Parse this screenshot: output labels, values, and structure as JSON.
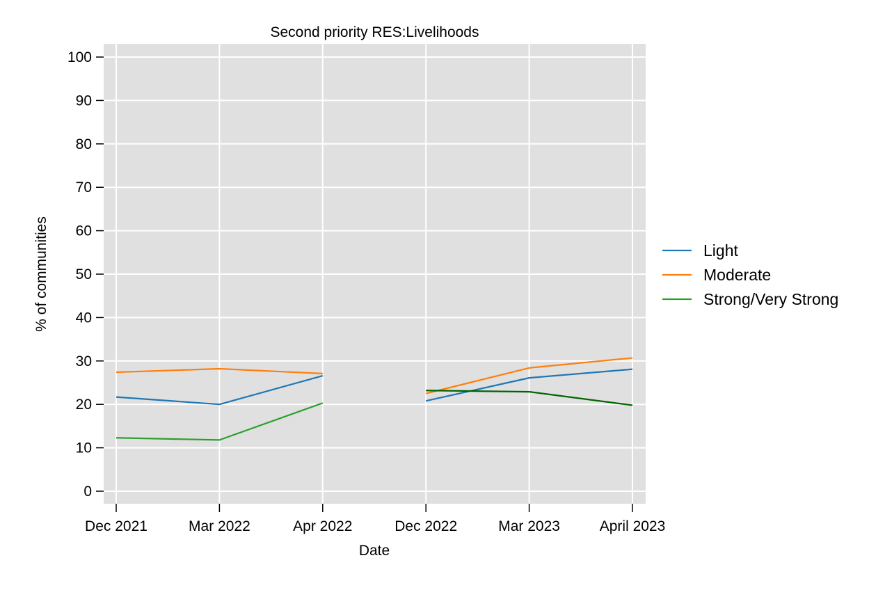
{
  "chart_data": {
    "type": "line",
    "title": "Second priority RES:Livelihoods",
    "xlabel": "Date",
    "ylabel": "% of communities",
    "categories": [
      "Dec 2021",
      "Mar 2022",
      "Apr 2022",
      "Dec 2022",
      "Mar 2023",
      "April 2023"
    ],
    "ylim": [
      0,
      100
    ],
    "yticks": [
      0,
      10,
      20,
      30,
      40,
      50,
      60,
      70,
      80,
      90,
      100
    ],
    "grid": true,
    "legend_position": "right",
    "series": [
      {
        "name": "Light",
        "color": "#1f77b4",
        "segments": [
          {
            "x": [
              "Dec 2021",
              "Mar 2022",
              "Apr 2022"
            ],
            "values": [
              21.7,
              20.0,
              26.6
            ]
          },
          {
            "x": [
              "Dec 2022",
              "Mar 2023",
              "April 2023"
            ],
            "values": [
              20.8,
              26.1,
              28.1
            ]
          }
        ]
      },
      {
        "name": "Moderate",
        "color": "#ff7f0e",
        "segments": [
          {
            "x": [
              "Dec 2021",
              "Mar 2022",
              "Apr 2022"
            ],
            "values": [
              27.4,
              28.2,
              27.1
            ]
          },
          {
            "x": [
              "Dec 2022",
              "Mar 2023",
              "April 2023"
            ],
            "values": [
              22.5,
              28.4,
              30.7
            ]
          }
        ]
      },
      {
        "name": "Strong/Very Strong",
        "color": "#2ca02c",
        "segments": [
          {
            "x": [
              "Dec 2021",
              "Mar 2022",
              "Apr 2022"
            ],
            "values": [
              12.3,
              11.8,
              20.3
            ],
            "color": "#2ca02c"
          },
          {
            "x": [
              "Dec 2022",
              "Mar 2023",
              "April 2023"
            ],
            "values": [
              23.2,
              22.9,
              19.8
            ],
            "color": "#006400"
          }
        ]
      }
    ]
  }
}
